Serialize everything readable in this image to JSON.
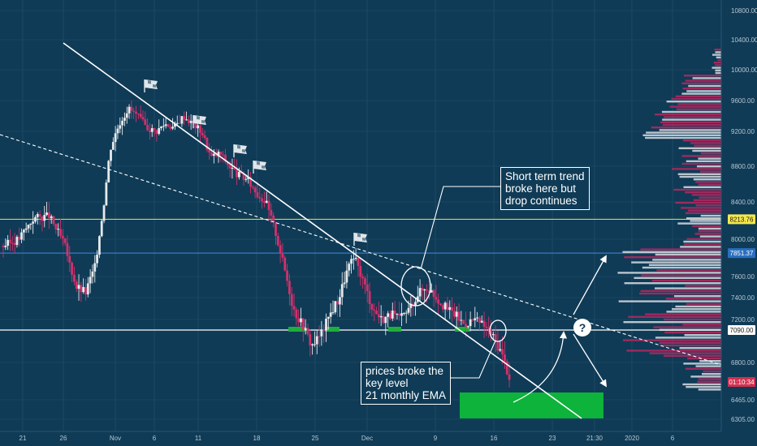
{
  "chart_data": {
    "type": "candlestick",
    "title": "",
    "xlabel": "",
    "ylabel": "",
    "ylim": [
      6200,
      10900
    ],
    "y_ticks": [
      "10800.00",
      "10400.00",
      "10000.00",
      "9600.00",
      "9200.00",
      "8800.00",
      "8400.00",
      "8000.00",
      "7600.00",
      "7400.00",
      "7200.00",
      "6800.00",
      "6465.00",
      "6305.00"
    ],
    "x_ticks": [
      "21",
      "26",
      "Nov",
      "6",
      "11",
      "18",
      "25",
      "Dec",
      "9",
      "16",
      "23",
      "21:30",
      "2020",
      "6"
    ],
    "price_labels": [
      {
        "text": "8213.76",
        "price": 8213.76,
        "bg": "#f5e84b",
        "fg": "#1a1a1a"
      },
      {
        "text": "7851.37",
        "price": 7851.37,
        "bg": "#2a6fc0",
        "fg": "#ffffff"
      },
      {
        "text": "7090.00",
        "price": 7090,
        "bg": "#ffffff",
        "fg": "#1a1a1a"
      },
      {
        "text": "01:10:34",
        "price": 6625,
        "bg": "#d2304f",
        "fg": "#ffffff"
      }
    ],
    "horizontal_levels": [
      {
        "price": 8213.76,
        "color": "#d9d334"
      },
      {
        "price": 7851.37,
        "color": "#3a78c9"
      },
      {
        "price": 7090,
        "color": "#ffffff"
      }
    ],
    "annotations": [
      {
        "text": "Short term trend\nbroke here but\ndrop continues"
      },
      {
        "text": "prices broke the\nkey level\n21 monthly EMA"
      },
      {
        "text": "?"
      }
    ],
    "candle_colors": {
      "up": "#e6e9ec",
      "down": "#d2306a"
    },
    "path": [
      {
        "t": 0,
        "p": 7930
      },
      {
        "t": 5,
        "p": 8000
      },
      {
        "t": 10,
        "p": 8230
      },
      {
        "t": 15,
        "p": 8250
      },
      {
        "t": 20,
        "p": 7950
      },
      {
        "t": 22,
        "p": 7700
      },
      {
        "t": 24,
        "p": 7500
      },
      {
        "t": 27,
        "p": 7450
      },
      {
        "t": 30,
        "p": 7700
      },
      {
        "t": 33,
        "p": 8400
      },
      {
        "t": 35,
        "p": 9000
      },
      {
        "t": 38,
        "p": 9300
      },
      {
        "t": 41,
        "p": 9500
      },
      {
        "t": 44,
        "p": 9400
      },
      {
        "t": 47,
        "p": 9250
      },
      {
        "t": 50,
        "p": 9200
      },
      {
        "t": 53,
        "p": 9300
      },
      {
        "t": 56,
        "p": 9250
      },
      {
        "t": 59,
        "p": 9400
      },
      {
        "t": 62,
        "p": 9300
      },
      {
        "t": 65,
        "p": 9200
      },
      {
        "t": 68,
        "p": 8900
      },
      {
        "t": 71,
        "p": 8950
      },
      {
        "t": 74,
        "p": 8800
      },
      {
        "t": 77,
        "p": 8700
      },
      {
        "t": 80,
        "p": 8650
      },
      {
        "t": 83,
        "p": 8500
      },
      {
        "t": 86,
        "p": 8400
      },
      {
        "t": 89,
        "p": 8100
      },
      {
        "t": 92,
        "p": 7700
      },
      {
        "t": 95,
        "p": 7300
      },
      {
        "t": 98,
        "p": 7150
      },
      {
        "t": 101,
        "p": 6950
      },
      {
        "t": 104,
        "p": 7050
      },
      {
        "t": 107,
        "p": 7250
      },
      {
        "t": 110,
        "p": 7400
      },
      {
        "t": 113,
        "p": 7700
      },
      {
        "t": 115,
        "p": 7800
      },
      {
        "t": 118,
        "p": 7550
      },
      {
        "t": 121,
        "p": 7300
      },
      {
        "t": 124,
        "p": 7200
      },
      {
        "t": 127,
        "p": 7250
      },
      {
        "t": 130,
        "p": 7200
      },
      {
        "t": 133,
        "p": 7300
      },
      {
        "t": 136,
        "p": 7450
      },
      {
        "t": 139,
        "p": 7500
      },
      {
        "t": 142,
        "p": 7400
      },
      {
        "t": 145,
        "p": 7300
      },
      {
        "t": 148,
        "p": 7250
      },
      {
        "t": 151,
        "p": 7150
      },
      {
        "t": 154,
        "p": 7200
      },
      {
        "t": 157,
        "p": 7150
      },
      {
        "t": 160,
        "p": 7050
      },
      {
        "t": 163,
        "p": 6900
      },
      {
        "t": 166,
        "p": 6650
      }
    ],
    "time_range": [
      0,
      166
    ]
  }
}
